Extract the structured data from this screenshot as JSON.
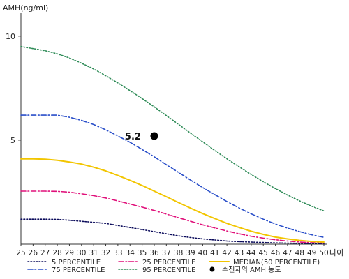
{
  "chart_data": {
    "type": "line",
    "ylabel": "AMH(ng/ml)",
    "xlabel": "나이",
    "ylim": [
      0,
      11
    ],
    "yticks": [
      5,
      10
    ],
    "xlim": [
      25,
      50
    ],
    "x": [
      25,
      26,
      27,
      28,
      29,
      30,
      31,
      32,
      33,
      34,
      35,
      36,
      37,
      38,
      39,
      40,
      41,
      42,
      43,
      44,
      45,
      46,
      47,
      48,
      49,
      50
    ],
    "series": [
      {
        "name": "5 PERCENTILE",
        "color": "#0a0a5a",
        "style": "dotted",
        "values": [
          1.2,
          1.2,
          1.2,
          1.19,
          1.15,
          1.1,
          1.05,
          1.0,
          0.9,
          0.8,
          0.7,
          0.6,
          0.5,
          0.4,
          0.32,
          0.25,
          0.2,
          0.15,
          0.12,
          0.1,
          0.08,
          0.06,
          0.05,
          0.04,
          0.03,
          0.02
        ]
      },
      {
        "name": "25 PERCENTILE",
        "color": "#e0107a",
        "style": "dashdot",
        "values": [
          2.55,
          2.55,
          2.55,
          2.54,
          2.5,
          2.42,
          2.33,
          2.22,
          2.08,
          1.93,
          1.78,
          1.62,
          1.45,
          1.27,
          1.1,
          0.93,
          0.78,
          0.63,
          0.5,
          0.38,
          0.29,
          0.21,
          0.15,
          0.1,
          0.07,
          0.05
        ]
      },
      {
        "name": "MEDIAN(50 PERCENTILE)",
        "color": "#f2c500",
        "style": "solid",
        "values": [
          4.1,
          4.1,
          4.08,
          4.03,
          3.95,
          3.85,
          3.7,
          3.52,
          3.3,
          3.07,
          2.82,
          2.55,
          2.28,
          2.0,
          1.73,
          1.47,
          1.23,
          1.0,
          0.8,
          0.62,
          0.47,
          0.34,
          0.25,
          0.18,
          0.13,
          0.1
        ]
      },
      {
        "name": "75 PERCENTILE",
        "color": "#2a4fc9",
        "style": "dashdot",
        "values": [
          6.2,
          6.2,
          6.2,
          6.2,
          6.1,
          5.95,
          5.75,
          5.5,
          5.2,
          4.9,
          4.55,
          4.2,
          3.82,
          3.45,
          3.08,
          2.72,
          2.38,
          2.05,
          1.74,
          1.46,
          1.2,
          0.97,
          0.77,
          0.6,
          0.45,
          0.33
        ]
      },
      {
        "name": "95 PERCENTILE",
        "color": "#2e8b57",
        "style": "dotted",
        "values": [
          9.5,
          9.4,
          9.3,
          9.15,
          8.95,
          8.7,
          8.42,
          8.1,
          7.75,
          7.38,
          7.0,
          6.6,
          6.18,
          5.76,
          5.34,
          4.92,
          4.5,
          4.1,
          3.72,
          3.35,
          3.0,
          2.67,
          2.36,
          2.08,
          1.82,
          1.6
        ]
      }
    ],
    "marker": {
      "name": "수진자의 AMH 농도",
      "x": 36,
      "y": 5.2,
      "label": "5.2",
      "color": "#000000"
    },
    "legend_position": "bottom"
  }
}
